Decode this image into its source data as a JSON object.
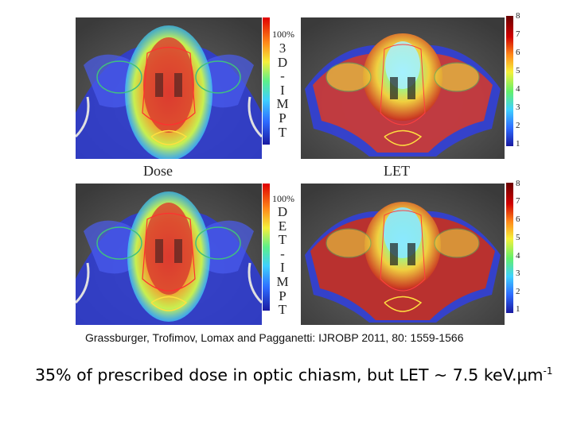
{
  "labels": {
    "dose": "Dose",
    "let": "LET",
    "percent": "100%",
    "top_row_method": [
      "3",
      "D",
      "-",
      "I",
      "M",
      "P",
      "T"
    ],
    "bottom_row_method": [
      "D",
      "E",
      "T",
      "-",
      "I",
      "M",
      "P",
      "T"
    ]
  },
  "let_scale_ticks": [
    "8",
    "7",
    "6",
    "5",
    "4",
    "3",
    "2",
    "1"
  ],
  "citation": "Grassburger, Trofimov, Lomax and Pagganetti: IJROBP 2011, 80: 1559-1566",
  "caption": {
    "text": "35% of prescribed dose in optic chiasm, but LET ~ 7.5 keV.μm",
    "superscript": "-1"
  },
  "colors": {
    "dose_high": "#e01010",
    "dose_low": "#2a3cff",
    "let_high": "#c01818",
    "let_mid": "#f3e23a",
    "ct_gray": "#585858"
  }
}
